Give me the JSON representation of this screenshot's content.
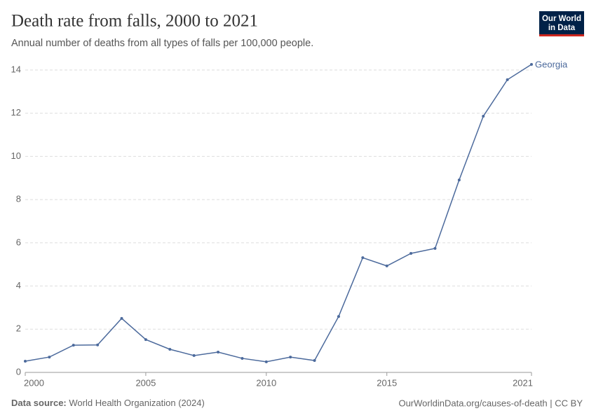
{
  "chart_data": {
    "type": "line",
    "title": "Death rate from falls, 2000 to 2021",
    "subtitle": "Annual number of deaths from all types of falls per 100,000 people.",
    "x": [
      2000,
      2001,
      2002,
      2003,
      2004,
      2005,
      2006,
      2007,
      2008,
      2009,
      2010,
      2011,
      2012,
      2013,
      2014,
      2015,
      2016,
      2017,
      2018,
      2019,
      2020,
      2021
    ],
    "series": [
      {
        "name": "Georgia",
        "color": "#4c6a9c",
        "values": [
          0.52,
          0.71,
          1.26,
          1.27,
          2.5,
          1.52,
          1.07,
          0.78,
          0.94,
          0.65,
          0.49,
          0.71,
          0.55,
          2.59,
          5.31,
          4.93,
          5.51,
          5.74,
          8.91,
          11.86,
          13.55,
          14.26
        ]
      }
    ],
    "xlim": [
      2000,
      2021
    ],
    "xticks": [
      2000,
      2005,
      2010,
      2015,
      2021
    ],
    "ylim": [
      0,
      14
    ],
    "yticks": [
      0,
      2,
      4,
      6,
      8,
      10,
      12,
      14
    ],
    "grid": true,
    "source_label": "Data source:",
    "source": "World Health Organization (2024)",
    "credit": "OurWorldinData.org/causes-of-death | CC BY",
    "logo": [
      "Our World",
      "in Data"
    ]
  }
}
